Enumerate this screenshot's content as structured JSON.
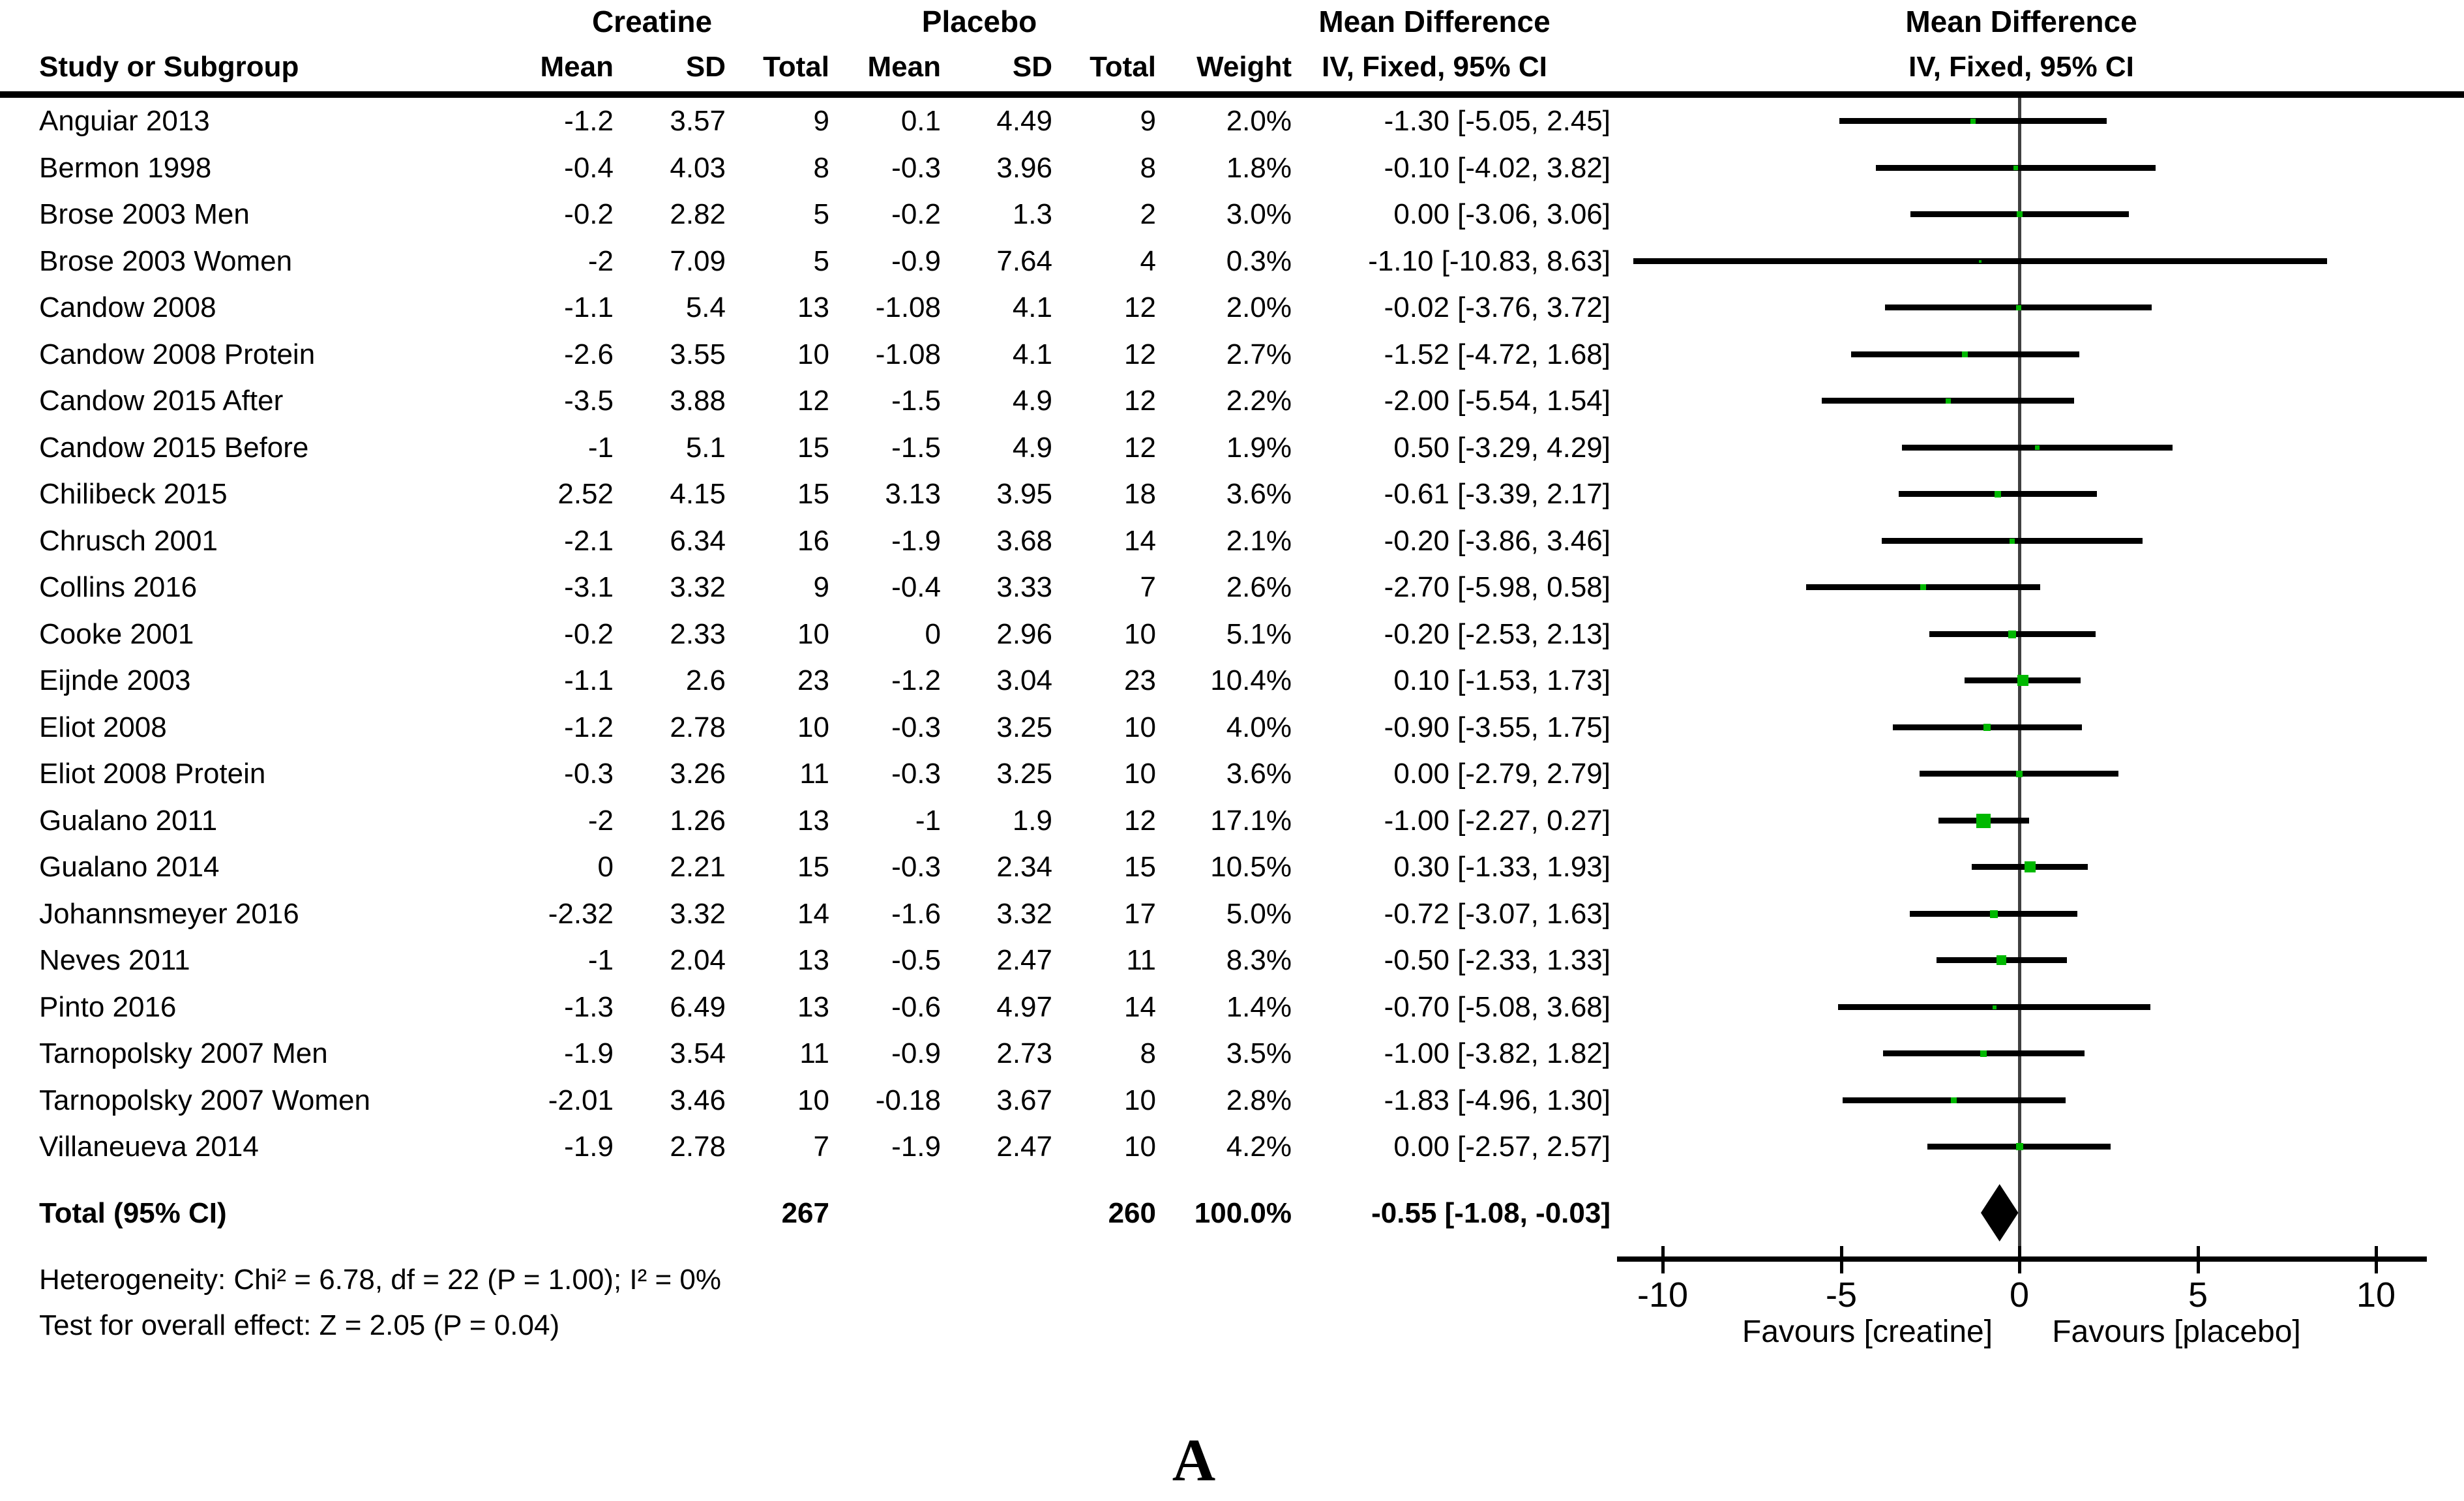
{
  "figure": {
    "panel_label": "A"
  },
  "colors": {
    "marker_green": "#00b800",
    "ci_black": "#000000",
    "zero_line_gray": "#404040",
    "diamond_black": "#000000"
  },
  "header": {
    "group_creatine": "Creatine",
    "group_placebo": "Placebo",
    "group_md_table": "Mean Difference",
    "group_md_plot": "Mean Difference",
    "col_study": "Study or Subgroup",
    "col_mean_c": "Mean",
    "col_sd_c": "SD",
    "col_total_c": "Total",
    "col_mean_p": "Mean",
    "col_sd_p": "SD",
    "col_total_p": "Total",
    "col_weight": "Weight",
    "col_iv_table": "IV, Fixed, 95% CI",
    "col_iv_plot": "IV, Fixed, 95% CI"
  },
  "chart_data": {
    "type": "forest",
    "effect_measure": "Mean Difference (IV, Fixed, 95% CI)",
    "axis": {
      "tick_values": [
        -10,
        -5,
        0,
        5,
        10
      ],
      "tick_labels": [
        "-10",
        "-5",
        "0",
        "5",
        "10"
      ],
      "xmin": -11.3,
      "xmax": 11.4
    },
    "favours_left": "Favours [creatine]",
    "favours_right": "Favours [placebo]",
    "studies": [
      {
        "name": "Anguiar 2013",
        "c_mean": "-1.2",
        "c_sd": "3.57",
        "c_total": "9",
        "p_mean": "0.1",
        "p_sd": "4.49",
        "p_total": "9",
        "weight": "2.0%",
        "weight_pct": 2.0,
        "iv_text": "-1.30 [-5.05, 2.45]",
        "md": -1.3,
        "lo": -5.05,
        "hi": 2.45
      },
      {
        "name": "Bermon 1998",
        "c_mean": "-0.4",
        "c_sd": "4.03",
        "c_total": "8",
        "p_mean": "-0.3",
        "p_sd": "3.96",
        "p_total": "8",
        "weight": "1.8%",
        "weight_pct": 1.8,
        "iv_text": "-0.10 [-4.02, 3.82]",
        "md": -0.1,
        "lo": -4.02,
        "hi": 3.82
      },
      {
        "name": "Brose 2003 Men",
        "c_mean": "-0.2",
        "c_sd": "2.82",
        "c_total": "5",
        "p_mean": "-0.2",
        "p_sd": "1.3",
        "p_total": "2",
        "weight": "3.0%",
        "weight_pct": 3.0,
        "iv_text": "0.00 [-3.06, 3.06]",
        "md": 0.0,
        "lo": -3.06,
        "hi": 3.06
      },
      {
        "name": "Brose 2003 Women",
        "c_mean": "-2",
        "c_sd": "7.09",
        "c_total": "5",
        "p_mean": "-0.9",
        "p_sd": "7.64",
        "p_total": "4",
        "weight": "0.3%",
        "weight_pct": 0.3,
        "iv_text": "-1.10 [-10.83, 8.63]",
        "md": -1.1,
        "lo": -10.83,
        "hi": 8.63
      },
      {
        "name": "Candow 2008",
        "c_mean": "-1.1",
        "c_sd": "5.4",
        "c_total": "13",
        "p_mean": "-1.08",
        "p_sd": "4.1",
        "p_total": "12",
        "weight": "2.0%",
        "weight_pct": 2.0,
        "iv_text": "-0.02 [-3.76, 3.72]",
        "md": -0.02,
        "lo": -3.76,
        "hi": 3.72
      },
      {
        "name": "Candow 2008 Protein",
        "c_mean": "-2.6",
        "c_sd": "3.55",
        "c_total": "10",
        "p_mean": "-1.08",
        "p_sd": "4.1",
        "p_total": "12",
        "weight": "2.7%",
        "weight_pct": 2.7,
        "iv_text": "-1.52 [-4.72, 1.68]",
        "md": -1.52,
        "lo": -4.72,
        "hi": 1.68
      },
      {
        "name": "Candow 2015 After",
        "c_mean": "-3.5",
        "c_sd": "3.88",
        "c_total": "12",
        "p_mean": "-1.5",
        "p_sd": "4.9",
        "p_total": "12",
        "weight": "2.2%",
        "weight_pct": 2.2,
        "iv_text": "-2.00 [-5.54, 1.54]",
        "md": -2.0,
        "lo": -5.54,
        "hi": 1.54
      },
      {
        "name": "Candow 2015 Before",
        "c_mean": "-1",
        "c_sd": "5.1",
        "c_total": "15",
        "p_mean": "-1.5",
        "p_sd": "4.9",
        "p_total": "12",
        "weight": "1.9%",
        "weight_pct": 1.9,
        "iv_text": "0.50 [-3.29, 4.29]",
        "md": 0.5,
        "lo": -3.29,
        "hi": 4.29
      },
      {
        "name": "Chilibeck 2015",
        "c_mean": "2.52",
        "c_sd": "4.15",
        "c_total": "15",
        "p_mean": "3.13",
        "p_sd": "3.95",
        "p_total": "18",
        "weight": "3.6%",
        "weight_pct": 3.6,
        "iv_text": "-0.61 [-3.39, 2.17]",
        "md": -0.61,
        "lo": -3.39,
        "hi": 2.17
      },
      {
        "name": "Chrusch 2001",
        "c_mean": "-2.1",
        "c_sd": "6.34",
        "c_total": "16",
        "p_mean": "-1.9",
        "p_sd": "3.68",
        "p_total": "14",
        "weight": "2.1%",
        "weight_pct": 2.1,
        "iv_text": "-0.20 [-3.86, 3.46]",
        "md": -0.2,
        "lo": -3.86,
        "hi": 3.46
      },
      {
        "name": "Collins 2016",
        "c_mean": "-3.1",
        "c_sd": "3.32",
        "c_total": "9",
        "p_mean": "-0.4",
        "p_sd": "3.33",
        "p_total": "7",
        "weight": "2.6%",
        "weight_pct": 2.6,
        "iv_text": "-2.70 [-5.98, 0.58]",
        "md": -2.7,
        "lo": -5.98,
        "hi": 0.58
      },
      {
        "name": "Cooke 2001",
        "c_mean": "-0.2",
        "c_sd": "2.33",
        "c_total": "10",
        "p_mean": "0",
        "p_sd": "2.96",
        "p_total": "10",
        "weight": "5.1%",
        "weight_pct": 5.1,
        "iv_text": "-0.20 [-2.53, 2.13]",
        "md": -0.2,
        "lo": -2.53,
        "hi": 2.13
      },
      {
        "name": "Eijnde 2003",
        "c_mean": "-1.1",
        "c_sd": "2.6",
        "c_total": "23",
        "p_mean": "-1.2",
        "p_sd": "3.04",
        "p_total": "23",
        "weight": "10.4%",
        "weight_pct": 10.4,
        "iv_text": "0.10 [-1.53, 1.73]",
        "md": 0.1,
        "lo": -1.53,
        "hi": 1.73
      },
      {
        "name": "Eliot 2008",
        "c_mean": "-1.2",
        "c_sd": "2.78",
        "c_total": "10",
        "p_mean": "-0.3",
        "p_sd": "3.25",
        "p_total": "10",
        "weight": "4.0%",
        "weight_pct": 4.0,
        "iv_text": "-0.90 [-3.55, 1.75]",
        "md": -0.9,
        "lo": -3.55,
        "hi": 1.75
      },
      {
        "name": "Eliot 2008 Protein",
        "c_mean": "-0.3",
        "c_sd": "3.26",
        "c_total": "11",
        "p_mean": "-0.3",
        "p_sd": "3.25",
        "p_total": "10",
        "weight": "3.6%",
        "weight_pct": 3.6,
        "iv_text": "0.00 [-2.79, 2.79]",
        "md": 0.0,
        "lo": -2.79,
        "hi": 2.79
      },
      {
        "name": "Gualano 2011",
        "c_mean": "-2",
        "c_sd": "1.26",
        "c_total": "13",
        "p_mean": "-1",
        "p_sd": "1.9",
        "p_total": "12",
        "weight": "17.1%",
        "weight_pct": 17.1,
        "iv_text": "-1.00 [-2.27, 0.27]",
        "md": -1.0,
        "lo": -2.27,
        "hi": 0.27
      },
      {
        "name": "Gualano 2014",
        "c_mean": "0",
        "c_sd": "2.21",
        "c_total": "15",
        "p_mean": "-0.3",
        "p_sd": "2.34",
        "p_total": "15",
        "weight": "10.5%",
        "weight_pct": 10.5,
        "iv_text": "0.30 [-1.33, 1.93]",
        "md": 0.3,
        "lo": -1.33,
        "hi": 1.93
      },
      {
        "name": "Johannsmeyer 2016",
        "c_mean": "-2.32",
        "c_sd": "3.32",
        "c_total": "14",
        "p_mean": "-1.6",
        "p_sd": "3.32",
        "p_total": "17",
        "weight": "5.0%",
        "weight_pct": 5.0,
        "iv_text": "-0.72 [-3.07, 1.63]",
        "md": -0.72,
        "lo": -3.07,
        "hi": 1.63
      },
      {
        "name": "Neves 2011",
        "c_mean": "-1",
        "c_sd": "2.04",
        "c_total": "13",
        "p_mean": "-0.5",
        "p_sd": "2.47",
        "p_total": "11",
        "weight": "8.3%",
        "weight_pct": 8.3,
        "iv_text": "-0.50 [-2.33, 1.33]",
        "md": -0.5,
        "lo": -2.33,
        "hi": 1.33
      },
      {
        "name": "Pinto 2016",
        "c_mean": "-1.3",
        "c_sd": "6.49",
        "c_total": "13",
        "p_mean": "-0.6",
        "p_sd": "4.97",
        "p_total": "14",
        "weight": "1.4%",
        "weight_pct": 1.4,
        "iv_text": "-0.70 [-5.08, 3.68]",
        "md": -0.7,
        "lo": -5.08,
        "hi": 3.68
      },
      {
        "name": "Tarnopolsky 2007 Men",
        "c_mean": "-1.9",
        "c_sd": "3.54",
        "c_total": "11",
        "p_mean": "-0.9",
        "p_sd": "2.73",
        "p_total": "8",
        "weight": "3.5%",
        "weight_pct": 3.5,
        "iv_text": "-1.00 [-3.82, 1.82]",
        "md": -1.0,
        "lo": -3.82,
        "hi": 1.82
      },
      {
        "name": "Tarnopolsky 2007 Women",
        "c_mean": "-2.01",
        "c_sd": "3.46",
        "c_total": "10",
        "p_mean": "-0.18",
        "p_sd": "3.67",
        "p_total": "10",
        "weight": "2.8%",
        "weight_pct": 2.8,
        "iv_text": "-1.83 [-4.96, 1.30]",
        "md": -1.83,
        "lo": -4.96,
        "hi": 1.3
      },
      {
        "name": "Villaneueva 2014",
        "c_mean": "-1.9",
        "c_sd": "2.78",
        "c_total": "7",
        "p_mean": "-1.9",
        "p_sd": "2.47",
        "p_total": "10",
        "weight": "4.2%",
        "weight_pct": 4.2,
        "iv_text": "0.00 [-2.57, 2.57]",
        "md": 0.0,
        "lo": -2.57,
        "hi": 2.57
      }
    ],
    "total": {
      "label": "Total (95% CI)",
      "c_total": "267",
      "p_total": "260",
      "weight": "100.0%",
      "iv_text": "-0.55 [-1.08, -0.03]",
      "md": -0.555,
      "lo": -1.08,
      "hi": -0.03
    },
    "heterogeneity": "Heterogeneity: Chi² = 6.78, df = 22 (P = 1.00); I² = 0%",
    "overall_effect": "Test for overall effect: Z = 2.05 (P = 0.04)"
  }
}
